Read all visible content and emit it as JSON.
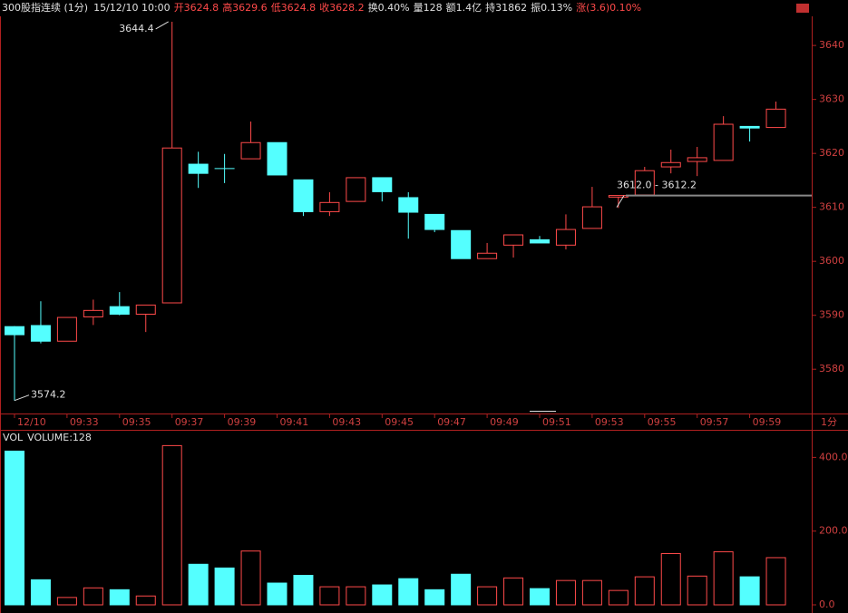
{
  "chart_data": [
    {
      "type": "candlestick",
      "title": "300股指连续 (1分)",
      "datetime": "15/12/10 10:00",
      "header": [
        {
          "text": "开3624.8",
          "color": "#ff4a4a"
        },
        {
          "text": "高3629.6",
          "color": "#ff4a4a"
        },
        {
          "text": "低3624.8",
          "color": "#ff4a4a"
        },
        {
          "text": "收3628.2",
          "color": "#ff4a4a"
        },
        {
          "text": "换0.40%",
          "color": "#e0e0e0"
        },
        {
          "text": "量128",
          "color": "#e0e0e0"
        },
        {
          "text": "额1.4亿",
          "color": "#e0e0e0"
        },
        {
          "text": "持31862",
          "color": "#e0e0e0"
        },
        {
          "text": "振0.13%",
          "color": "#e0e0e0"
        },
        {
          "text": "涨(3.6)0.10%",
          "color": "#ff4a4a"
        }
      ],
      "x_unit": "1分",
      "categories": [
        "12/10",
        null,
        "09:33",
        null,
        "09:35",
        null,
        "09:37",
        null,
        "09:39",
        null,
        "09:41",
        null,
        "09:43",
        null,
        "09:45",
        null,
        "09:47",
        null,
        "09:49",
        null,
        "09:51",
        null,
        "09:53",
        null,
        "09:55",
        null,
        "09:57",
        null,
        "09:59",
        null
      ],
      "open": [
        3587.9,
        3588.1,
        3585.2,
        3589.7,
        3591.6,
        3590.2,
        3592.3,
        3618.0,
        3617.2,
        3619.0,
        3622.0,
        3615.1,
        3609.2,
        3611.1,
        3615.5,
        3611.8,
        3608.7,
        3605.7,
        3600.5,
        3603.0,
        3604.0,
        3603.0,
        3606.1,
        3611.9,
        3612.3,
        3617.5,
        3618.5,
        3618.7,
        3625.0,
        3624.8
      ],
      "high": [
        3588.0,
        3592.6,
        3589.6,
        3592.9,
        3594.3,
        3591.9,
        3644.4,
        3620.3,
        3619.9,
        3625.9,
        3622.0,
        3615.1,
        3612.8,
        3615.5,
        3615.5,
        3612.8,
        3608.7,
        3605.7,
        3603.4,
        3604.9,
        3604.7,
        3608.7,
        3613.8,
        3612.2,
        3617.5,
        3620.7,
        3621.2,
        3626.9,
        3625.0,
        3629.6
      ],
      "low": [
        3574.2,
        3584.8,
        3585.2,
        3588.2,
        3590.0,
        3586.9,
        3592.3,
        3613.6,
        3614.5,
        3619.0,
        3616.0,
        3608.4,
        3608.4,
        3611.1,
        3611.1,
        3604.2,
        3605.4,
        3600.5,
        3600.5,
        3600.7,
        3603.4,
        3602.2,
        3606.1,
        3609.9,
        3612.3,
        3616.3,
        3615.8,
        3618.7,
        3622.2,
        3624.8
      ],
      "close": [
        3586.4,
        3585.2,
        3589.6,
        3590.9,
        3590.2,
        3591.9,
        3621.0,
        3616.3,
        3617.2,
        3622.0,
        3616.0,
        3609.2,
        3610.9,
        3615.5,
        3612.9,
        3609.1,
        3605.9,
        3600.5,
        3601.5,
        3604.9,
        3603.4,
        3605.9,
        3610.1,
        3612.2,
        3616.8,
        3618.3,
        3619.2,
        3625.4,
        3624.7,
        3628.2
      ],
      "up_color": "#ff4a4a",
      "down_color": "#54ffff",
      "ylim": [
        3571.8,
        3645.4
      ],
      "yticks": [
        3580,
        3590,
        3600,
        3610,
        3620,
        3630,
        3640
      ],
      "annotations": [
        {
          "label": "3644.4",
          "value": 3644.4,
          "kind": "high"
        },
        {
          "label": "3574.2",
          "value": 3574.2,
          "kind": "low"
        }
      ],
      "range_marker": {
        "label": "3612.0 - 3612.2",
        "value": 3612.2,
        "color": "#888888"
      }
    },
    {
      "type": "bar",
      "label": "VOL",
      "title": "VOLUME:128",
      "values": [
        417,
        68,
        20,
        46,
        41,
        24,
        432,
        110,
        100,
        146,
        59,
        80,
        49,
        49,
        54,
        71,
        41,
        83,
        49,
        73,
        44,
        66,
        66,
        39,
        76,
        139,
        78,
        144,
        76,
        128
      ],
      "ylim": [
        0,
        460
      ],
      "yticks": [
        {
          "value": 0,
          "label": "0.0"
        },
        {
          "value": 200,
          "label": "200.0"
        },
        {
          "value": 400,
          "label": "400.0"
        }
      ]
    }
  ]
}
